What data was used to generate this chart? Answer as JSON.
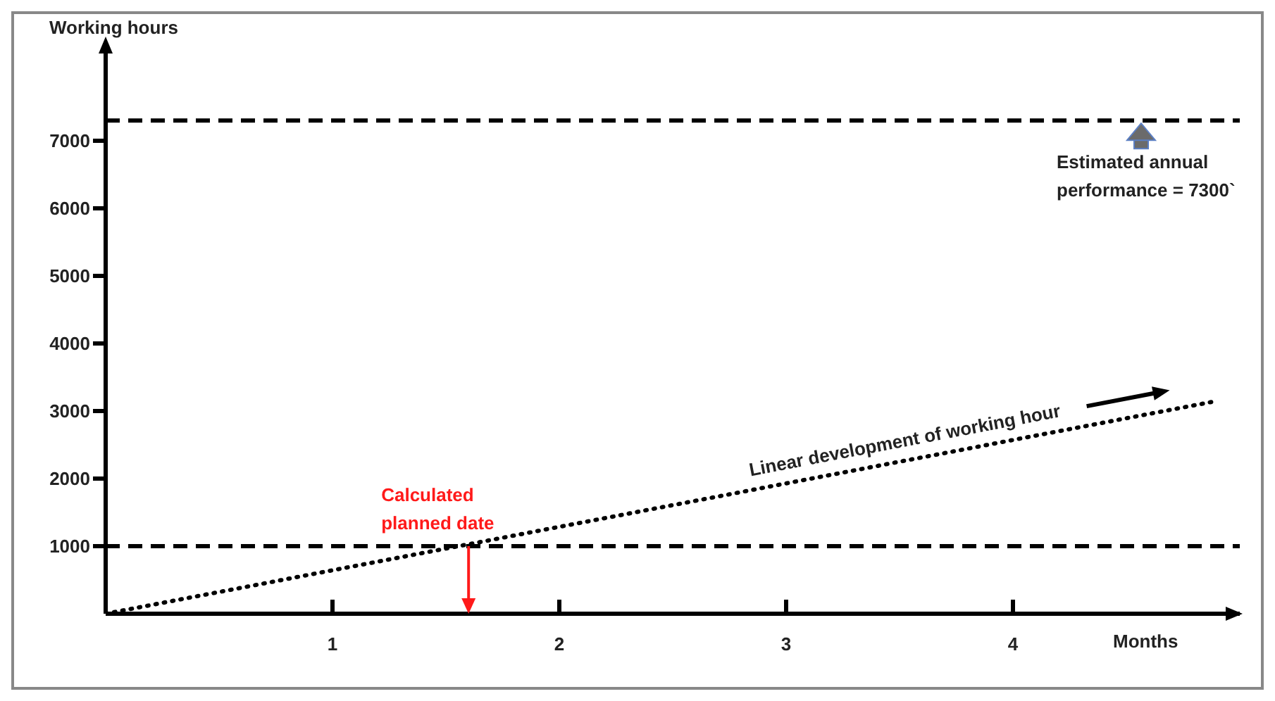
{
  "chart_data": {
    "type": "line",
    "xlabel": "Months",
    "ylabel": "Working hours",
    "xlim": [
      0,
      5
    ],
    "xticks": [
      1,
      2,
      3,
      4
    ],
    "ylim": [
      0,
      8000
    ],
    "yticks": [
      1000,
      2000,
      3000,
      4000,
      5000,
      6000,
      7000
    ],
    "series": [
      {
        "name": "Linear development of working hour",
        "color": "#000000",
        "x": [
          0,
          4.9
        ],
        "values": [
          0,
          3150
        ]
      }
    ],
    "line_style": "dotted",
    "marker": "none",
    "grid": false,
    "ref_lines": [
      {
        "axis": "y",
        "value": 1000,
        "color": "#000000",
        "line_style": "dashed"
      },
      {
        "axis": "y",
        "value": 7300,
        "label": "Estimated annual performance = 7300`",
        "color": "#000000",
        "line_style": "dashed"
      }
    ],
    "annotations": [
      {
        "text": "Calculated planned date",
        "x": 1.6,
        "y": 1000
      }
    ]
  }
}
